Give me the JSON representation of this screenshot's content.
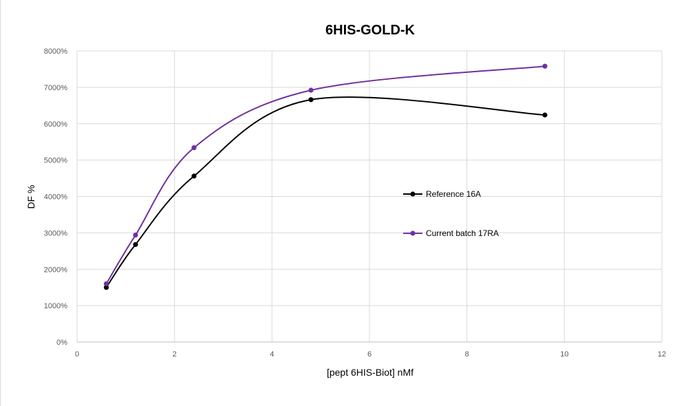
{
  "chart_data": {
    "type": "line",
    "title": "6HIS-GOLD-K",
    "xlabel": "[pept 6HIS-Biot] nMf",
    "ylabel": "DF %",
    "xlim": [
      0,
      12
    ],
    "ylim": [
      0,
      8000
    ],
    "x_ticks": [
      "0",
      "2",
      "4",
      "6",
      "8",
      "10",
      "12"
    ],
    "y_ticks": [
      "0%",
      "1000%",
      "2000%",
      "3000%",
      "4000%",
      "5000%",
      "6000%",
      "7000%",
      "8000%"
    ],
    "grid": true,
    "smooth": true,
    "legend_position": "center-right",
    "series": [
      {
        "name": "Reference 16A",
        "color": "#000000",
        "x": [
          0.6,
          1.2,
          2.4,
          4.8,
          9.6
        ],
        "y": [
          1500,
          2680,
          4560,
          6660,
          6240
        ]
      },
      {
        "name": "Current batch 17RA",
        "color": "#7030a0",
        "x": [
          0.6,
          1.2,
          2.4,
          4.8,
          9.6
        ],
        "y": [
          1600,
          2940,
          5340,
          6920,
          7580
        ]
      }
    ]
  }
}
